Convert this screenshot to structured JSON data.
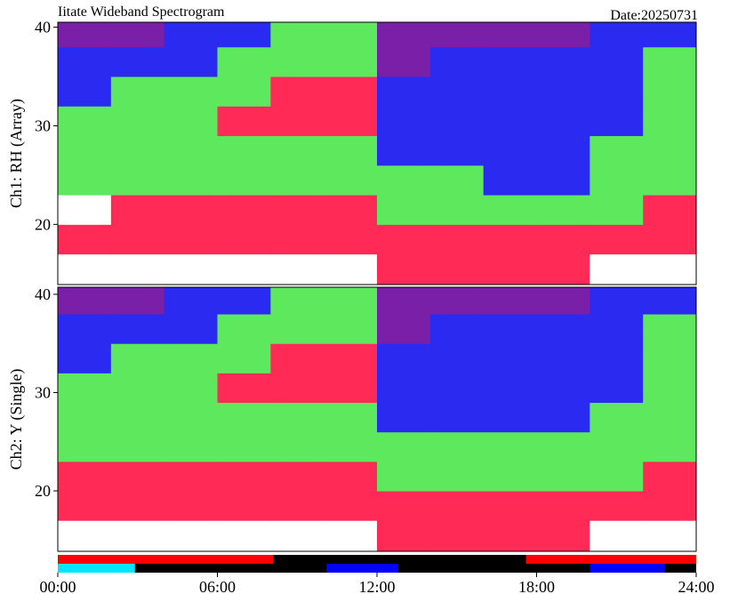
{
  "chart_data": {
    "type": "heatmap",
    "title": "Iitate Wideband Spectrogram",
    "date_label": "Date:20250731",
    "xlim": [
      0,
      24
    ],
    "xticks": [
      {
        "value": 0,
        "label": "00:00"
      },
      {
        "value": 6,
        "label": "06:00"
      },
      {
        "value": 12,
        "label": "12:00"
      },
      {
        "value": 18,
        "label": "18:00"
      },
      {
        "value": 24,
        "label": "24:00"
      }
    ],
    "time_bins": [
      0,
      2,
      4,
      6,
      8,
      10,
      12,
      14,
      16,
      18,
      20,
      22,
      24
    ],
    "freq_bins": [
      13.8,
      17,
      20,
      23,
      26,
      29,
      32,
      35,
      38,
      40.8
    ],
    "colors": [
      "#7a1fa8",
      "#2a2af0",
      "#5ee85e",
      "#ff2a55",
      "#ffffff"
    ],
    "panels": [
      {
        "ylabel": "Ch1: RH (Array)",
        "ylim": [
          13.9,
          40.5
        ],
        "yticks": [
          20,
          30,
          40
        ],
        "levels": [
          [
            4,
            4,
            4,
            4,
            4,
            4,
            3,
            3,
            3,
            3,
            4,
            4
          ],
          [
            3,
            3,
            3,
            3,
            3,
            3,
            3,
            3,
            3,
            3,
            3,
            3
          ],
          [
            4,
            3,
            3,
            3,
            3,
            3,
            2,
            2,
            2,
            2,
            2,
            3
          ],
          [
            2,
            2,
            2,
            2,
            2,
            2,
            2,
            2,
            1,
            1,
            2,
            2
          ],
          [
            2,
            2,
            2,
            2,
            2,
            2,
            1,
            1,
            1,
            1,
            2,
            2
          ],
          [
            2,
            2,
            2,
            3,
            3,
            3,
            1,
            1,
            1,
            1,
            1,
            2
          ],
          [
            1,
            2,
            2,
            2,
            3,
            3,
            1,
            1,
            1,
            1,
            1,
            2
          ],
          [
            1,
            1,
            1,
            2,
            2,
            2,
            0,
            1,
            1,
            1,
            1,
            2
          ],
          [
            0,
            0,
            1,
            1,
            2,
            2,
            0,
            0,
            0,
            0,
            1,
            1
          ]
        ]
      },
      {
        "ylabel": "Ch2: Y (Single)",
        "ylim": [
          13.85,
          40.72
        ],
        "yticks": [
          20,
          30,
          40
        ],
        "levels": [
          [
            4,
            4,
            4,
            4,
            4,
            4,
            3,
            3,
            3,
            3,
            4,
            4
          ],
          [
            3,
            3,
            3,
            3,
            3,
            3,
            3,
            3,
            3,
            3,
            3,
            3
          ],
          [
            3,
            3,
            3,
            3,
            3,
            3,
            2,
            2,
            2,
            2,
            2,
            3
          ],
          [
            2,
            2,
            2,
            2,
            2,
            2,
            2,
            2,
            2,
            2,
            2,
            2
          ],
          [
            2,
            2,
            2,
            2,
            2,
            2,
            1,
            1,
            1,
            1,
            2,
            2
          ],
          [
            2,
            2,
            2,
            3,
            3,
            3,
            1,
            1,
            1,
            1,
            1,
            2
          ],
          [
            1,
            2,
            2,
            2,
            3,
            3,
            1,
            1,
            1,
            1,
            1,
            2
          ],
          [
            1,
            1,
            1,
            2,
            2,
            2,
            0,
            1,
            1,
            1,
            1,
            2
          ],
          [
            0,
            0,
            1,
            1,
            2,
            2,
            0,
            0,
            0,
            0,
            1,
            1
          ]
        ]
      }
    ],
    "status_background": "#000000",
    "status_rows": [
      {
        "segments": [
          {
            "start": 0,
            "end": 8.1,
            "color": "#ff0000"
          },
          {
            "start": 17.6,
            "end": 24,
            "color": "#ff0000"
          }
        ]
      },
      {
        "segments": [
          {
            "start": 0,
            "end": 2.9,
            "color": "#00e5ff"
          },
          {
            "start": 10.1,
            "end": 12.8,
            "color": "#0000ff"
          },
          {
            "start": 20,
            "end": 22.8,
            "color": "#0000ff"
          }
        ]
      }
    ]
  }
}
